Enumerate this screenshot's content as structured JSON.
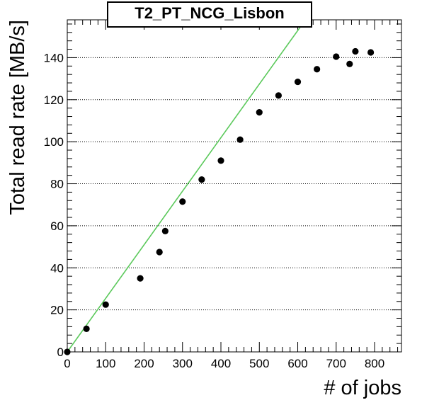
{
  "chart_data": {
    "type": "scatter",
    "title": "T2_PT_NCG_Lisbon",
    "xlabel": "# of jobs",
    "ylabel": "Total read rate [MB/s]",
    "xlim": [
      0,
      870
    ],
    "ylim": [
      0,
      158
    ],
    "xticks": [
      0,
      100,
      200,
      300,
      400,
      500,
      600,
      700,
      800
    ],
    "yticks": [
      0,
      20,
      40,
      60,
      80,
      100,
      120,
      140
    ],
    "grid": "horizontal dotted",
    "series": [
      {
        "color": "#000000",
        "marker": "filled-circle",
        "points": [
          {
            "x": 0,
            "y": 0
          },
          {
            "x": 50,
            "y": 11
          },
          {
            "x": 100,
            "y": 22.5
          },
          {
            "x": 190,
            "y": 35
          },
          {
            "x": 240,
            "y": 47.5
          },
          {
            "x": 255,
            "y": 57.5
          },
          {
            "x": 300,
            "y": 71.5
          },
          {
            "x": 350,
            "y": 82
          },
          {
            "x": 400,
            "y": 91
          },
          {
            "x": 450,
            "y": 101
          },
          {
            "x": 500,
            "y": 114
          },
          {
            "x": 550,
            "y": 122
          },
          {
            "x": 600,
            "y": 128.5
          },
          {
            "x": 650,
            "y": 134.5
          },
          {
            "x": 700,
            "y": 140.5
          },
          {
            "x": 735,
            "y": 137
          },
          {
            "x": 750,
            "y": 143
          },
          {
            "x": 790,
            "y": 142.5
          }
        ]
      }
    ],
    "reference_line": {
      "color": "#5bc95b",
      "from": {
        "x": 0,
        "y": 0
      },
      "to": {
        "x": 620,
        "y": 158
      }
    }
  }
}
